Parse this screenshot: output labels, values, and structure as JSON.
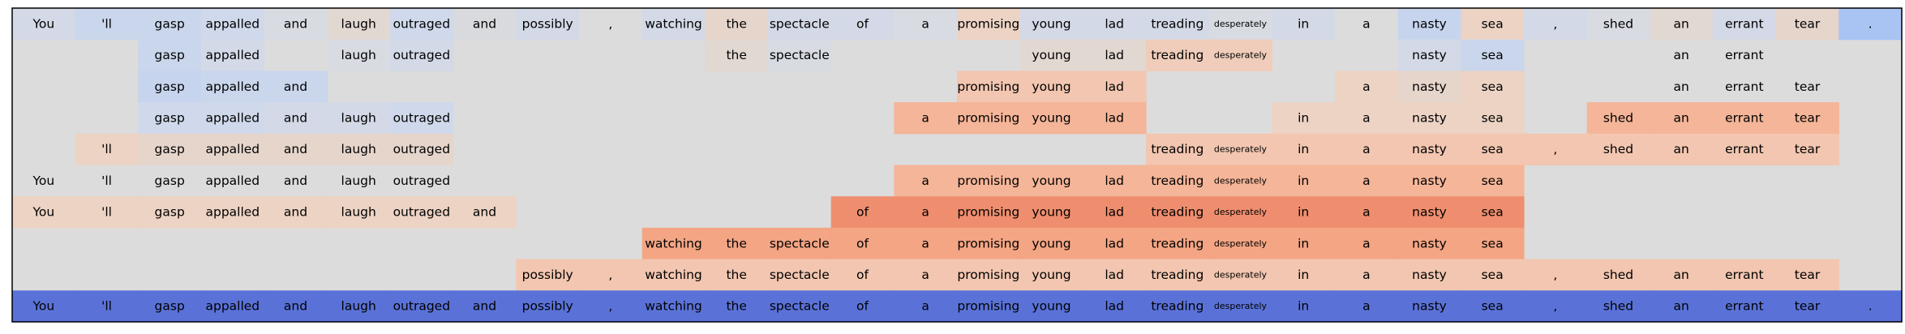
{
  "chart_data": {
    "type": "heatmap",
    "columns": [
      "You",
      "'ll",
      "gasp",
      "appalled",
      "and",
      "laugh",
      "outraged",
      "and",
      "possibly",
      ",",
      "watching",
      "the",
      "spectacle",
      "of",
      "a",
      "promising",
      "young",
      "lad",
      "treading",
      "desperately",
      "in",
      "a",
      "nasty",
      "sea",
      ",",
      "shed",
      "an",
      "errant",
      "tear",
      "."
    ],
    "rows": [
      {
        "cells": [
          [
            0,
            "#d3d9e6"
          ],
          [
            1,
            "#c9d6ec"
          ],
          [
            2,
            "#c9d6ec"
          ],
          [
            3,
            "#cfd9eb"
          ],
          [
            4,
            "#d8dbe2"
          ],
          [
            5,
            "#e2d8d2"
          ],
          [
            6,
            "#cfd9eb"
          ],
          [
            7,
            "#d9dade"
          ],
          [
            8,
            "#d3d9e6"
          ],
          [
            9,
            "#dcdcdc"
          ],
          [
            10,
            "#d3d9e6"
          ],
          [
            11,
            "#e6d5cb"
          ],
          [
            12,
            "#d3d9e6"
          ],
          [
            13,
            "#d3d9e6"
          ],
          [
            14,
            "#d8dbe2"
          ],
          [
            15,
            "#ecd3c4"
          ],
          [
            16,
            "#d3d9e6"
          ],
          [
            17,
            "#d3d9e6"
          ],
          [
            18,
            "#d3d9e6"
          ],
          [
            19,
            "#d8dbe2"
          ],
          [
            20,
            "#d3d9e6"
          ],
          [
            21,
            "#dcdcdc"
          ],
          [
            22,
            "#c6d4ee"
          ],
          [
            23,
            "#ecd3c4"
          ],
          [
            24,
            "#d3d9e6"
          ],
          [
            25,
            "#d8dbe2"
          ],
          [
            26,
            "#e2d8d2"
          ],
          [
            27,
            "#d3d9e6"
          ],
          [
            28,
            "#e6d5cb"
          ],
          [
            29,
            "#a9c3f3"
          ]
        ]
      },
      {
        "cells": [
          [
            2,
            "#c9d6ec"
          ],
          [
            3,
            "#d3d9e6"
          ],
          [
            5,
            "#d8dbe2"
          ],
          [
            6,
            "#d3d9e6"
          ],
          [
            11,
            "#e2d8d2"
          ],
          [
            12,
            "#d8dbe2"
          ],
          [
            16,
            "#e2d8d2"
          ],
          [
            17,
            "#e2d8d2"
          ],
          [
            18,
            "#efcdba"
          ],
          [
            19,
            "#efcdba"
          ],
          [
            22,
            "#d3d9e6"
          ],
          [
            23,
            "#c9d6ec"
          ],
          [
            26,
            "#dcdcdc"
          ],
          [
            27,
            "#dcdcdc"
          ]
        ]
      },
      {
        "cells": [
          [
            2,
            "#c6d4ee"
          ],
          [
            3,
            "#c9d6ec"
          ],
          [
            4,
            "#c9d6ec"
          ],
          [
            15,
            "#f2c6b0"
          ],
          [
            16,
            "#f2c6b0"
          ],
          [
            17,
            "#f2c6b0"
          ],
          [
            21,
            "#ecd3c4"
          ],
          [
            22,
            "#e6d5cb"
          ],
          [
            23,
            "#ecd3c4"
          ],
          [
            26,
            "#dcdcdc"
          ],
          [
            27,
            "#dcdcdc"
          ],
          [
            28,
            "#dcdcdc"
          ]
        ]
      },
      {
        "cells": [
          [
            2,
            "#cfd9eb"
          ],
          [
            3,
            "#cfd9eb"
          ],
          [
            4,
            "#d3d9e6"
          ],
          [
            5,
            "#d3d9e6"
          ],
          [
            6,
            "#cfd9eb"
          ],
          [
            14,
            "#f5b598"
          ],
          [
            15,
            "#f5b598"
          ],
          [
            16,
            "#f5b598"
          ],
          [
            17,
            "#f5b598"
          ],
          [
            20,
            "#ecd3c4"
          ],
          [
            21,
            "#ecd3c4"
          ],
          [
            22,
            "#ecd3c4"
          ],
          [
            23,
            "#ecd3c4"
          ],
          [
            25,
            "#f5b598"
          ],
          [
            26,
            "#f5b598"
          ],
          [
            27,
            "#f5b598"
          ],
          [
            28,
            "#f5b598"
          ]
        ]
      },
      {
        "cells": [
          [
            1,
            "#ecd3c4"
          ],
          [
            2,
            "#e6d5cb"
          ],
          [
            3,
            "#e6d5cb"
          ],
          [
            4,
            "#e6d5cb"
          ],
          [
            5,
            "#e6d5cb"
          ],
          [
            6,
            "#e6d5cb"
          ],
          [
            18,
            "#f2c6b0"
          ],
          [
            19,
            "#f2c6b0"
          ],
          [
            20,
            "#f2c6b0"
          ],
          [
            21,
            "#f2c6b0"
          ],
          [
            22,
            "#f2c6b0"
          ],
          [
            23,
            "#f2c6b0"
          ],
          [
            24,
            "#f2c6b0"
          ],
          [
            25,
            "#f2c6b0"
          ],
          [
            26,
            "#f2c6b0"
          ],
          [
            27,
            "#f2c6b0"
          ],
          [
            28,
            "#f2c6b0"
          ]
        ]
      },
      {
        "cells": [
          [
            0,
            "#dcdcdc"
          ],
          [
            1,
            "#dcdcdc"
          ],
          [
            2,
            "#dcdcdc"
          ],
          [
            3,
            "#dcdcdc"
          ],
          [
            4,
            "#dcdcdc"
          ],
          [
            5,
            "#dcdcdc"
          ],
          [
            6,
            "#dcdcdc"
          ],
          [
            14,
            "#f5b598"
          ],
          [
            15,
            "#f5b598"
          ],
          [
            16,
            "#f5b598"
          ],
          [
            17,
            "#f5b598"
          ],
          [
            18,
            "#f5b598"
          ],
          [
            19,
            "#f5b598"
          ],
          [
            20,
            "#f5b598"
          ],
          [
            21,
            "#f5b598"
          ],
          [
            22,
            "#f5b598"
          ],
          [
            23,
            "#f5b598"
          ]
        ]
      },
      {
        "cells": [
          [
            0,
            "#ecd3c4"
          ],
          [
            1,
            "#ecd3c4"
          ],
          [
            2,
            "#ecd3c4"
          ],
          [
            3,
            "#ecd3c4"
          ],
          [
            4,
            "#ecd3c4"
          ],
          [
            5,
            "#ecd3c4"
          ],
          [
            6,
            "#ecd3c4"
          ],
          [
            7,
            "#ecd3c4"
          ],
          [
            13,
            "#ef8e6e"
          ],
          [
            14,
            "#ef8e6e"
          ],
          [
            15,
            "#ef8e6e"
          ],
          [
            16,
            "#ef8e6e"
          ],
          [
            17,
            "#ef8e6e"
          ],
          [
            18,
            "#ef8e6e"
          ],
          [
            19,
            "#ef8e6e"
          ],
          [
            20,
            "#ef8e6e"
          ],
          [
            21,
            "#ef8e6e"
          ],
          [
            22,
            "#ef8e6e"
          ],
          [
            23,
            "#ef8e6e"
          ]
        ]
      },
      {
        "cells": [
          [
            10,
            "#f4a584"
          ],
          [
            11,
            "#f4a584"
          ],
          [
            12,
            "#f4a584"
          ],
          [
            13,
            "#f4a584"
          ],
          [
            14,
            "#f4a584"
          ],
          [
            15,
            "#f4a584"
          ],
          [
            16,
            "#f4a584"
          ],
          [
            17,
            "#f4a584"
          ],
          [
            18,
            "#f4a584"
          ],
          [
            19,
            "#f4a584"
          ],
          [
            20,
            "#f4a584"
          ],
          [
            21,
            "#f4a584"
          ],
          [
            22,
            "#f4a584"
          ],
          [
            23,
            "#f4a584"
          ]
        ]
      },
      {
        "cells": [
          [
            8,
            "#f2c6b0"
          ],
          [
            9,
            "#f2c6b0"
          ],
          [
            10,
            "#f2c6b0"
          ],
          [
            11,
            "#f2c6b0"
          ],
          [
            12,
            "#f2c6b0"
          ],
          [
            13,
            "#f2c6b0"
          ],
          [
            14,
            "#f2c6b0"
          ],
          [
            15,
            "#f2c6b0"
          ],
          [
            16,
            "#f2c6b0"
          ],
          [
            17,
            "#f2c6b0"
          ],
          [
            18,
            "#f2c6b0"
          ],
          [
            19,
            "#f2c6b0"
          ],
          [
            20,
            "#f2c6b0"
          ],
          [
            21,
            "#f2c6b0"
          ],
          [
            22,
            "#f2c6b0"
          ],
          [
            23,
            "#f2c6b0"
          ],
          [
            24,
            "#f2c6b0"
          ],
          [
            25,
            "#f2c6b0"
          ],
          [
            26,
            "#f2c6b0"
          ],
          [
            27,
            "#f2c6b0"
          ],
          [
            28,
            "#f2c6b0"
          ]
        ]
      },
      {
        "cells": [
          [
            0,
            "#5a72d8"
          ],
          [
            1,
            "#5a72d8"
          ],
          [
            2,
            "#5a72d8"
          ],
          [
            3,
            "#5a72d8"
          ],
          [
            4,
            "#5a72d8"
          ],
          [
            5,
            "#5a72d8"
          ],
          [
            6,
            "#5a72d8"
          ],
          [
            7,
            "#5a72d8"
          ],
          [
            8,
            "#5a72d8"
          ],
          [
            9,
            "#5a72d8"
          ],
          [
            10,
            "#5a72d8"
          ],
          [
            11,
            "#5a72d8"
          ],
          [
            12,
            "#5a72d8"
          ],
          [
            13,
            "#5a72d8"
          ],
          [
            14,
            "#5a72d8"
          ],
          [
            15,
            "#5a72d8"
          ],
          [
            16,
            "#5a72d8"
          ],
          [
            17,
            "#5a72d8"
          ],
          [
            18,
            "#5a72d8"
          ],
          [
            19,
            "#5a72d8"
          ],
          [
            20,
            "#5a72d8"
          ],
          [
            21,
            "#5a72d8"
          ],
          [
            22,
            "#5a72d8"
          ],
          [
            23,
            "#5a72d8"
          ],
          [
            24,
            "#5a72d8"
          ],
          [
            25,
            "#5a72d8"
          ],
          [
            26,
            "#5a72d8"
          ],
          [
            27,
            "#5a72d8"
          ],
          [
            28,
            "#5a72d8"
          ],
          [
            29,
            "#5a72d8"
          ]
        ]
      }
    ],
    "background_color": "#dcdcdc",
    "border_color": "#000000",
    "small_text_columns": [
      "desperately"
    ]
  }
}
